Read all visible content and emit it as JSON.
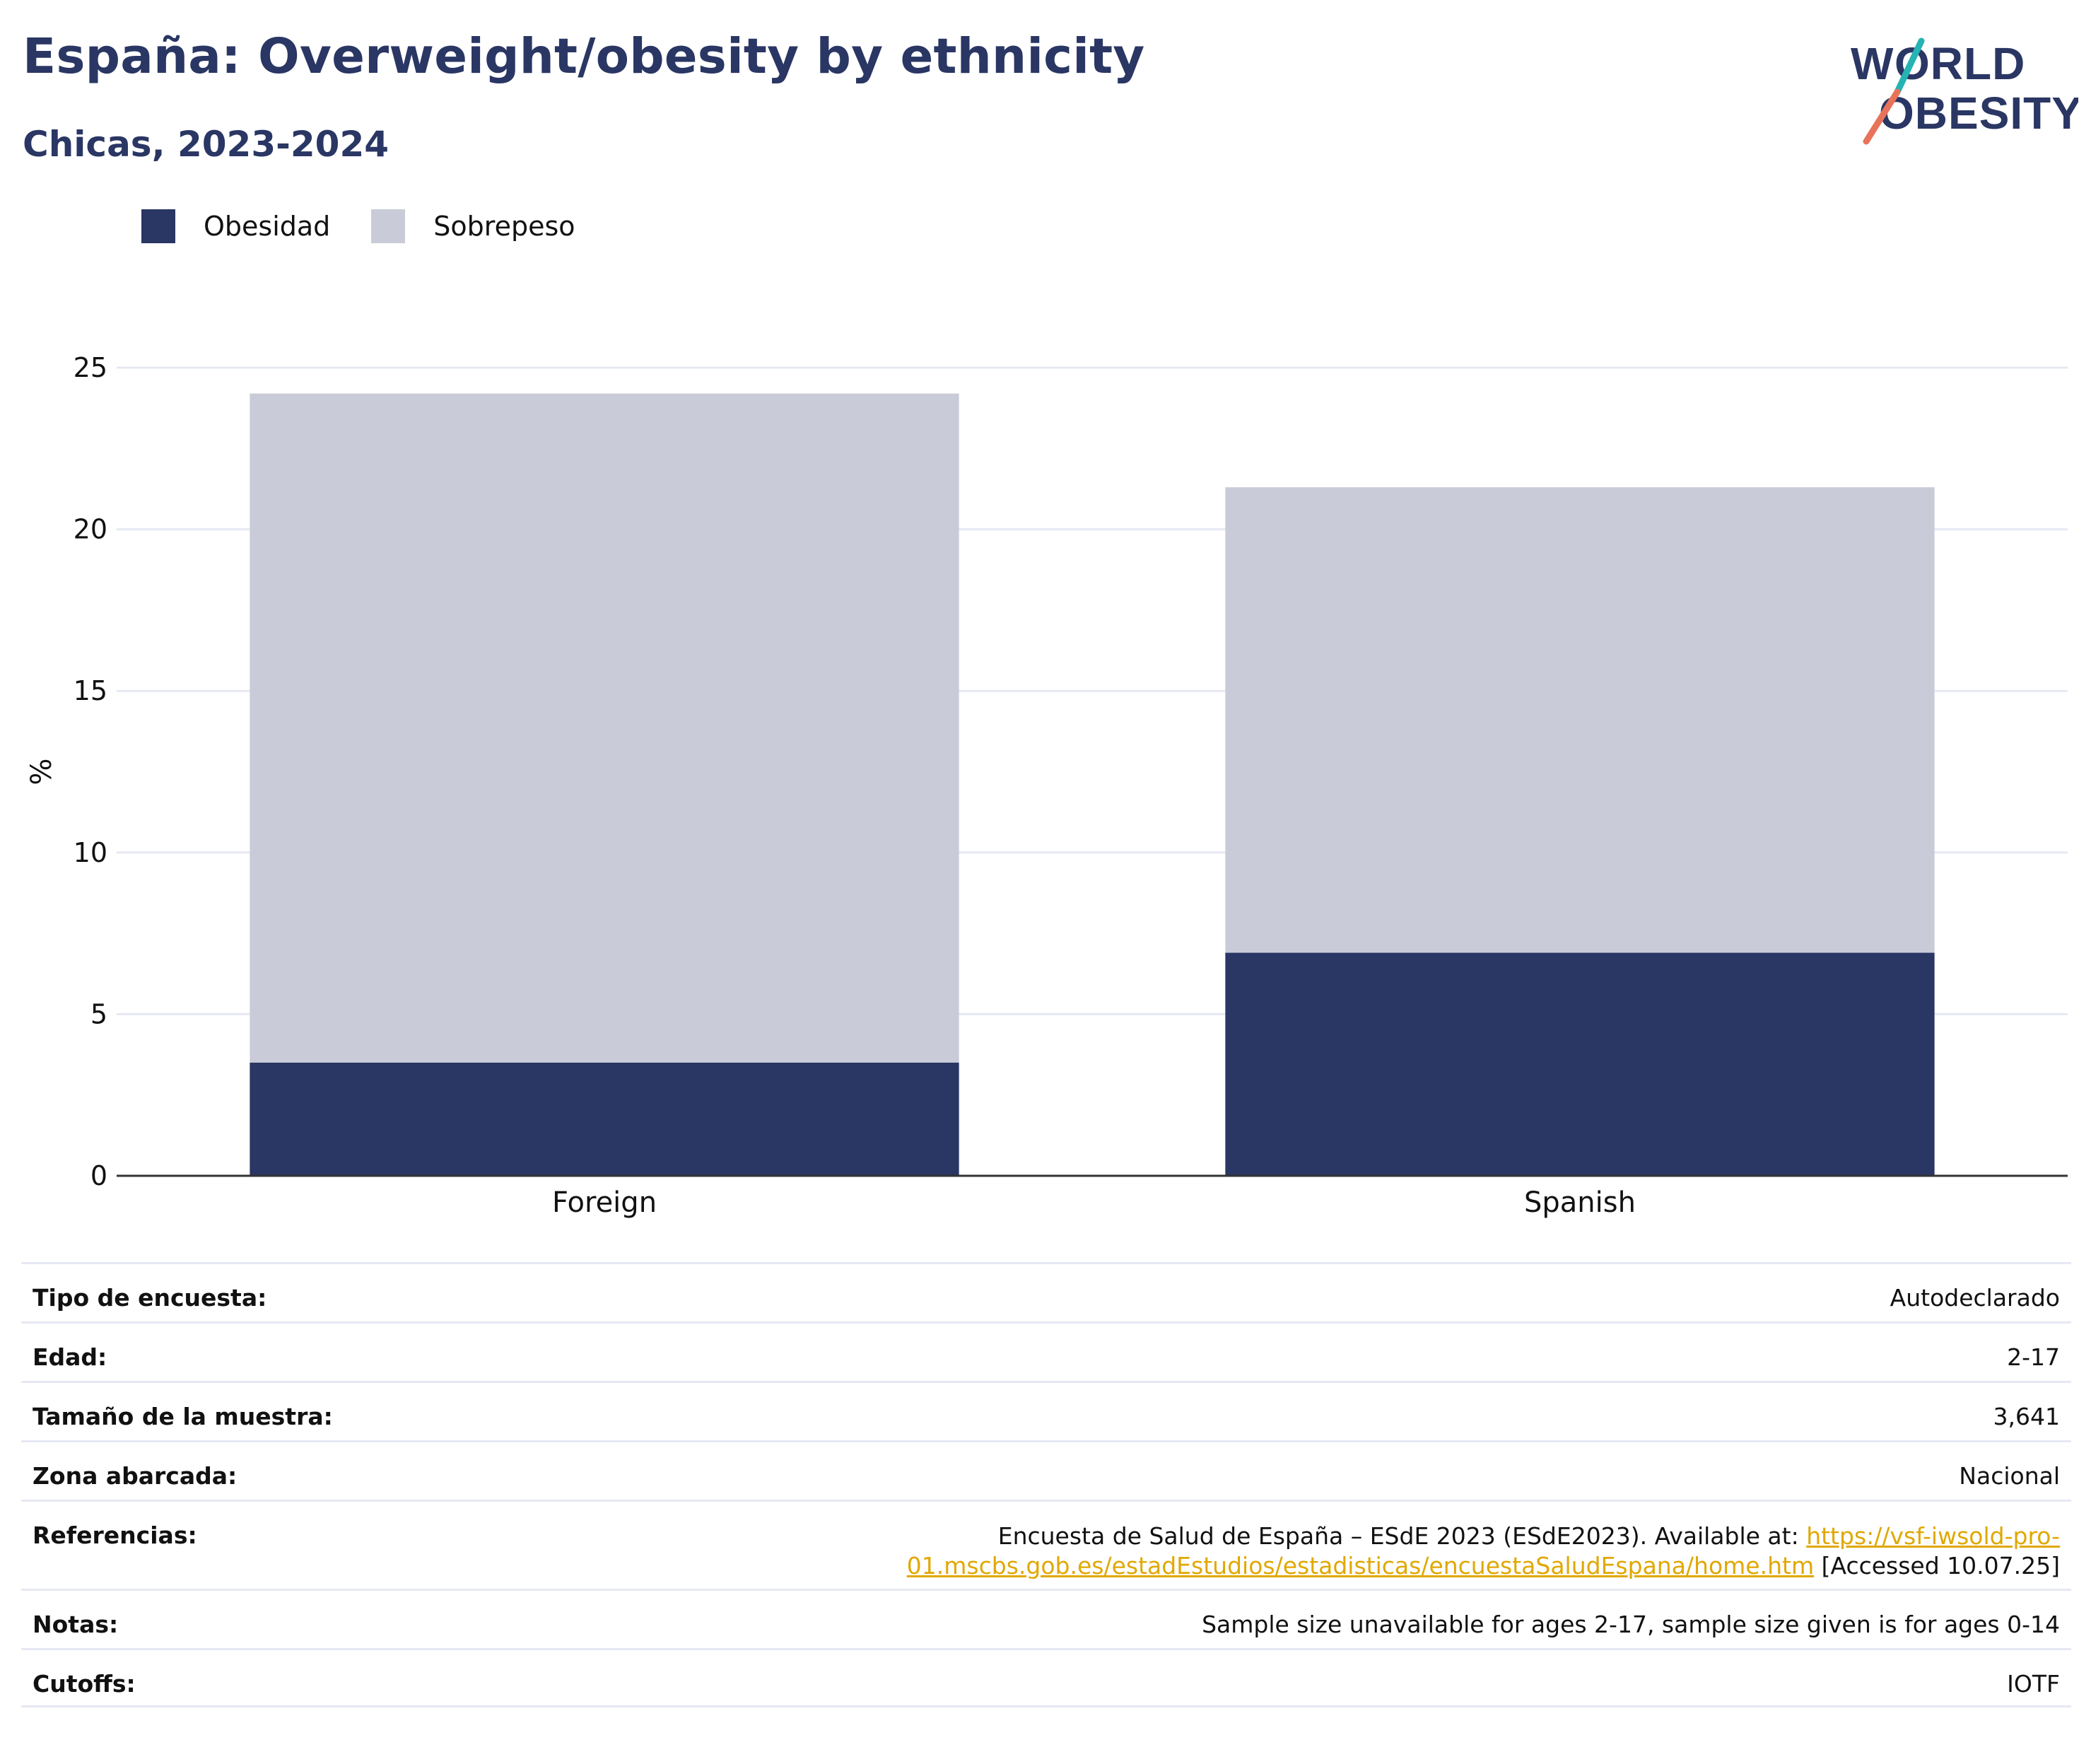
{
  "header": {
    "title": "España: Overweight/obesity by ethnicity",
    "subtitle": "Chicas, 2023-2024",
    "logo_text_top": "WORLD",
    "logo_text_bottom": "OBESITY"
  },
  "legend": {
    "items": [
      {
        "label": "Obesidad",
        "color": "#2a3663"
      },
      {
        "label": "Sobrepeso",
        "color": "#c9ccd8"
      }
    ]
  },
  "chart_data": {
    "type": "bar",
    "stacked": true,
    "categories": [
      "Foreign",
      "Spanish"
    ],
    "series": [
      {
        "name": "Obesidad",
        "color": "#2a3663",
        "values": [
          3.5,
          6.9
        ]
      },
      {
        "name": "Sobrepeso",
        "color": "#c9ccd8",
        "values": [
          20.7,
          14.4
        ]
      }
    ],
    "ylabel": "%",
    "ylim": [
      0,
      25
    ],
    "yticks": [
      0,
      5,
      10,
      15,
      20,
      25
    ],
    "grid": true,
    "legend_position": "top-left"
  },
  "info_table": {
    "rows": [
      {
        "label": "Tipo de encuesta:",
        "value": "Autodeclarado"
      },
      {
        "label": "Edad:",
        "value": "2-17"
      },
      {
        "label": "Tamaño de la muestra:",
        "value": "3,641"
      },
      {
        "label": "Zona abarcada:",
        "value": "Nacional"
      },
      {
        "label": "Referencias:",
        "value_prefix": "Encuesta de Salud de España – ESdE 2023 (ESdE2023). Available at: ",
        "link_part1": "https://vsf-iwsold-pro-",
        "link_part2": "01.mscbs.gob.es/estadEstudios/estadisticas/encuestaSaludEspana/home.htm",
        "value_suffix": " [Accessed 10.07.25]"
      },
      {
        "label": "Notas:",
        "value": "Sample size unavailable for ages 2-17, sample size given is for ages 0-14"
      },
      {
        "label": "Cutoffs:",
        "value": "IOTF"
      }
    ]
  }
}
